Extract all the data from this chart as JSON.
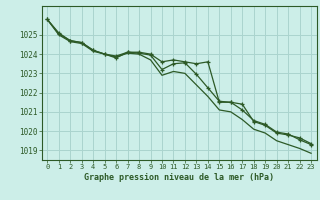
{
  "title": "Graphe pression niveau de la mer (hPa)",
  "background_color": "#cceee8",
  "grid_color": "#aad4ce",
  "line_color": "#2d5a27",
  "x_labels": [
    "0",
    "1",
    "2",
    "3",
    "4",
    "5",
    "6",
    "7",
    "8",
    "9",
    "10",
    "11",
    "12",
    "13",
    "14",
    "15",
    "16",
    "17",
    "18",
    "19",
    "20",
    "21",
    "22",
    "23"
  ],
  "ylim": [
    1018.5,
    1026.5
  ],
  "yticks": [
    1019,
    1020,
    1021,
    1022,
    1023,
    1024,
    1025
  ],
  "line1": [
    1025.8,
    1025.1,
    1024.7,
    1024.6,
    1024.2,
    1024.0,
    1023.9,
    1024.1,
    1024.1,
    1024.0,
    1023.6,
    1023.7,
    1023.6,
    1023.5,
    1023.6,
    1021.5,
    1021.5,
    1021.4,
    1020.5,
    1020.3,
    1019.9,
    1019.8,
    1019.65,
    1019.35
  ],
  "line2": [
    1025.8,
    1025.0,
    1024.65,
    1024.55,
    1024.15,
    1024.0,
    1023.85,
    1024.05,
    1024.0,
    1023.7,
    1022.9,
    1023.1,
    1023.0,
    1022.4,
    1021.8,
    1021.1,
    1021.0,
    1020.6,
    1020.1,
    1019.9,
    1019.5,
    1019.3,
    1019.1,
    1018.85
  ],
  "line3": [
    1025.8,
    1025.05,
    1024.7,
    1024.6,
    1024.2,
    1024.0,
    1023.8,
    1024.1,
    1024.05,
    1023.95,
    1023.2,
    1023.5,
    1023.55,
    1022.95,
    1022.25,
    1021.55,
    1021.5,
    1021.1,
    1020.55,
    1020.35,
    1019.95,
    1019.85,
    1019.55,
    1019.3
  ]
}
